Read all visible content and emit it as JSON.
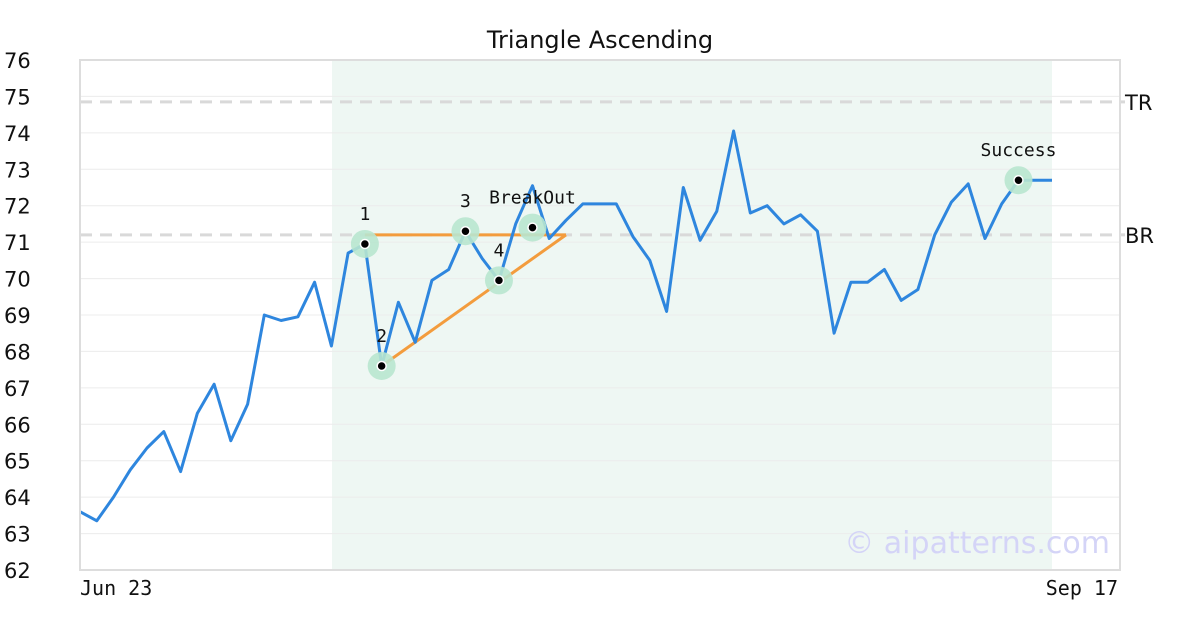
{
  "chart_data": {
    "type": "line",
    "title": "Triangle Ascending",
    "xlabel": "",
    "ylabel": "",
    "x_tick_labels": [
      "Jun 23",
      "Sep 17"
    ],
    "y_ticks": [
      62,
      63,
      64,
      65,
      66,
      67,
      68,
      69,
      70,
      71,
      72,
      73,
      74,
      75,
      76
    ],
    "ylim": [
      62,
      76
    ],
    "grid": true,
    "watermark": "© aipatterns.com",
    "x_count": 59,
    "series": [
      {
        "name": "",
        "color": "#2e86de",
        "values": [
          63.6,
          63.35,
          64.0,
          64.75,
          65.35,
          65.8,
          64.7,
          66.3,
          67.1,
          65.55,
          66.55,
          69.0,
          68.85,
          68.95,
          69.9,
          68.15,
          70.7,
          70.95,
          67.6,
          69.35,
          68.25,
          69.95,
          70.25,
          71.3,
          70.55,
          69.95,
          71.5,
          72.55,
          71.1,
          71.6,
          72.05,
          72.05,
          72.05,
          71.15,
          70.5,
          69.1,
          72.5,
          71.05,
          71.85,
          74.05,
          71.8,
          72.0,
          71.5,
          71.75,
          71.3,
          68.5,
          69.9,
          69.9,
          70.25,
          69.4,
          69.7,
          71.2,
          72.1,
          72.6,
          71.1,
          72.05,
          72.7,
          72.7,
          72.7
        ]
      }
    ],
    "levels": [
      {
        "label": "TR",
        "value": 74.85,
        "color": "#d9d9d9"
      },
      {
        "label": "BR",
        "value": 71.2,
        "color": "#d9d9d9"
      }
    ],
    "pattern_window": {
      "start_index": 15,
      "end_index": 58,
      "color": "#eef7f3"
    },
    "trendlines": [
      {
        "from": {
          "index": 17,
          "value": 71.2
        },
        "to": {
          "index": 29,
          "value": 71.2
        },
        "color": "#f39c3d"
      },
      {
        "from": {
          "index": 18,
          "value": 67.6
        },
        "to": {
          "index": 29,
          "value": 71.2
        },
        "color": "#f39c3d"
      }
    ],
    "points": [
      {
        "label": "1",
        "index": 17,
        "value": 70.95,
        "label_pos": "above"
      },
      {
        "label": "2",
        "index": 18,
        "value": 67.6,
        "label_pos": "above"
      },
      {
        "label": "3",
        "index": 23,
        "value": 71.3,
        "label_pos": "above"
      },
      {
        "label": "4",
        "index": 25,
        "value": 69.95,
        "label_pos": "above"
      },
      {
        "label": "BreakOut",
        "index": 27,
        "value": 71.4,
        "label_pos": "above"
      },
      {
        "label": "Success",
        "index": 56,
        "value": 72.7,
        "label_pos": "above"
      }
    ],
    "point_marker_color": "#b8e6cf"
  }
}
